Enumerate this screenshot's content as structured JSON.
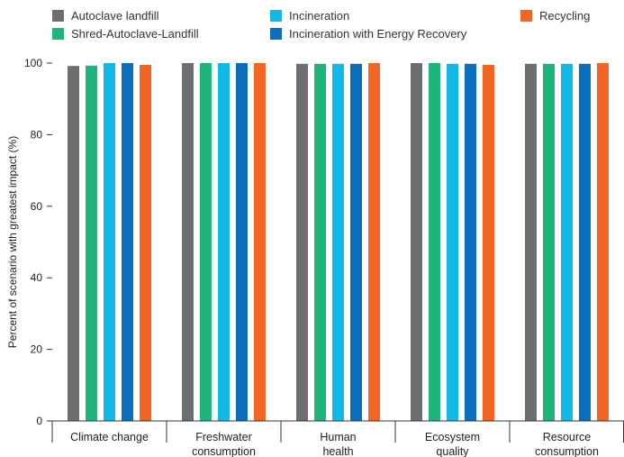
{
  "chart_data": {
    "type": "bar",
    "ylabel": "Percent of scenario with greatest impact (%)",
    "ylim": [
      0,
      100
    ],
    "yticks": [
      0,
      20,
      40,
      60,
      80,
      100
    ],
    "grid": false,
    "legend_position": "top",
    "categories": [
      [
        "Climate change"
      ],
      [
        "Freshwater",
        "consumption"
      ],
      [
        "Human",
        "health"
      ],
      [
        "Ecosystem",
        "quality"
      ],
      [
        "Resource",
        "consumption"
      ]
    ],
    "series": [
      {
        "name": "Autoclave landfill",
        "color": "#6d6e71",
        "values": [
          99.2,
          100,
          99.8,
          100,
          99.8
        ]
      },
      {
        "name": "Shred-Autoclave-Landfill",
        "color": "#1fb57a",
        "values": [
          99.3,
          100,
          99.8,
          100,
          99.8
        ]
      },
      {
        "name": "Incineration",
        "color": "#12b8e6",
        "values": [
          100,
          100,
          99.8,
          99.8,
          99.8
        ]
      },
      {
        "name": "Incineration with Energy Recovery",
        "color": "#0a6ebd",
        "values": [
          100,
          100,
          99.8,
          99.8,
          99.8
        ]
      },
      {
        "name": "Recycling",
        "color": "#f26522",
        "values": [
          99.5,
          100,
          100,
          99.5,
          100
        ]
      }
    ]
  }
}
